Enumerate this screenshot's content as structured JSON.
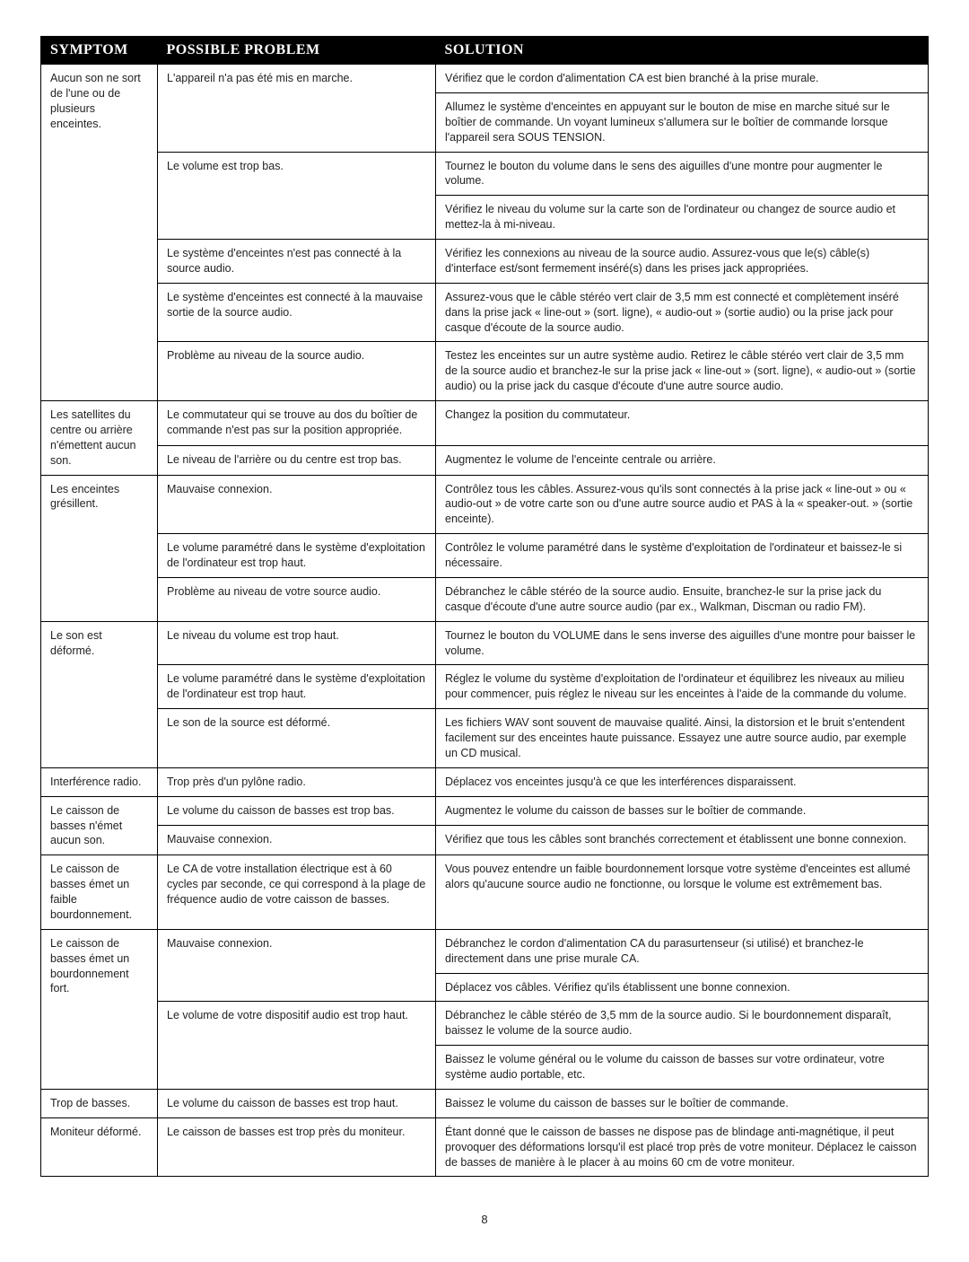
{
  "headers": {
    "symptom": "SYMPTOM",
    "problem": "POSSIBLE PROBLEM",
    "solution": "SOLUTION"
  },
  "page_number": "8",
  "rows": [
    {
      "symptom": "Aucun son ne sort de l'une ou de plusieurs enceintes.",
      "groups": [
        {
          "problem": "L'appareil n'a pas été mis en marche.",
          "solutions": [
            "Vérifiez que le cordon d'alimentation CA est bien branché à la prise murale.",
            "Allumez le système d'enceintes en appuyant sur le bouton de mise en marche situé sur le boîtier de commande. Un voyant lumineux s'allumera sur le boîtier de commande lorsque l'appareil sera SOUS TENSION."
          ]
        },
        {
          "problem": "Le volume est trop bas.",
          "solutions": [
            "Tournez le bouton du volume dans le sens des aiguilles d'une montre pour augmenter le volume.",
            "Vérifiez le niveau du volume sur la carte son de l'ordinateur ou changez de source audio et mettez-la à mi-niveau."
          ]
        },
        {
          "problem": "Le système d'enceintes n'est pas connecté à la source audio.",
          "solutions": [
            "Vérifiez les connexions au niveau de la source audio. Assurez-vous que le(s) câble(s) d'interface est/sont fermement inséré(s) dans les prises jack appropriées."
          ]
        },
        {
          "problem": "Le système d'enceintes est connecté à la mauvaise sortie de la source audio.",
          "solutions": [
            "Assurez-vous que le câble stéréo vert clair de 3,5 mm est connecté et complètement inséré dans la prise jack « line-out » (sort. ligne), « audio-out » (sortie audio) ou la prise jack pour casque d'écoute de la source audio."
          ]
        },
        {
          "problem": "Problème au niveau de la source audio.",
          "solutions": [
            "Testez les enceintes sur un autre système audio. Retirez le câble stéréo vert clair de 3,5 mm de la source audio et branchez-le sur la prise jack « line-out » (sort. ligne), « audio-out » (sortie audio) ou la prise jack du casque d'écoute d'une autre source audio."
          ]
        }
      ]
    },
    {
      "symptom": "Les satellites du centre ou arrière n'émettent aucun son.",
      "groups": [
        {
          "problem": "Le commutateur qui se trouve au dos du boîtier de commande n'est pas sur la position appropriée.",
          "solutions": [
            "Changez la position du commutateur."
          ]
        },
        {
          "problem": "Le niveau de l'arrière ou du centre est trop bas.",
          "solutions": [
            "Augmentez le volume de l'enceinte centrale ou arrière."
          ]
        }
      ]
    },
    {
      "symptom": "Les enceintes grésillent.",
      "groups": [
        {
          "problem": "Mauvaise connexion.",
          "solutions": [
            "Contrôlez tous les câbles. Assurez-vous qu'ils sont connectés à la prise jack « line-out » ou « audio-out » de votre carte son ou d'une autre source audio et PAS à la « speaker-out. » (sortie enceinte)."
          ]
        },
        {
          "problem": "Le volume paramétré dans le système d'exploitation de l'ordinateur est trop haut.",
          "solutions": [
            "Contrôlez le volume paramétré dans le système d'exploitation de l'ordinateur et baissez-le si nécessaire."
          ]
        },
        {
          "problem": "Problème au niveau de votre source audio.",
          "solutions": [
            "Débranchez le câble stéréo de la source audio. Ensuite, branchez-le sur la prise jack du casque d'écoute d'une autre source audio (par ex., Walkman, Discman ou radio FM)."
          ]
        }
      ]
    },
    {
      "symptom": "Le son est déformé.",
      "groups": [
        {
          "problem": "Le niveau du volume est trop haut.",
          "solutions": [
            "Tournez le bouton du VOLUME dans le sens inverse des aiguilles d'une montre pour baisser le volume."
          ]
        },
        {
          "problem": "Le volume paramétré dans le système d'exploitation de l'ordinateur est trop haut.",
          "solutions": [
            "Réglez le volume du système d'exploitation de l'ordinateur et équilibrez les niveaux au milieu pour commencer, puis réglez le niveau sur les enceintes à l'aide de la commande du volume."
          ]
        },
        {
          "problem": "Le son de la source est déformé.",
          "solutions": [
            "Les fichiers WAV sont souvent de mauvaise qualité. Ainsi, la distorsion et le bruit s'entendent facilement sur des enceintes haute puissance. Essayez une autre source audio, par exemple un CD musical."
          ]
        }
      ]
    },
    {
      "symptom": "Interférence radio.",
      "groups": [
        {
          "problem": "Trop près d'un pylône radio.",
          "solutions": [
            "Déplacez vos enceintes jusqu'à ce que les interférences disparaissent."
          ]
        }
      ]
    },
    {
      "symptom": "Le caisson de basses n'émet aucun son.",
      "groups": [
        {
          "problem": "Le volume du caisson de basses est trop bas.",
          "solutions": [
            "Augmentez le volume du caisson de basses sur le boîtier de commande."
          ]
        },
        {
          "problem": "Mauvaise connexion.",
          "solutions": [
            "Vérifiez que tous les câbles sont branchés correctement et établissent une bonne connexion."
          ]
        }
      ]
    },
    {
      "symptom": "Le caisson de basses émet un faible bourdonnement.",
      "groups": [
        {
          "problem": "Le CA de votre installation électrique est à 60 cycles par seconde, ce qui correspond à la plage de fréquence audio de votre caisson de basses.",
          "solutions": [
            "Vous pouvez entendre un faible bourdonnement lorsque votre système d'enceintes est allumé alors qu'aucune source audio ne fonctionne, ou lorsque le volume est extrêmement bas."
          ]
        }
      ]
    },
    {
      "symptom": "Le caisson de basses émet un bourdonnement fort.",
      "groups": [
        {
          "problem": "Mauvaise connexion.",
          "solutions": [
            "Débranchez le cordon d'alimentation CA du parasurtenseur (si utilisé) et branchez-le directement dans une prise murale CA.",
            "Déplacez vos câbles. Vérifiez qu'ils établissent une bonne connexion."
          ]
        },
        {
          "problem": "Le volume de votre dispositif audio est trop haut.",
          "solutions": [
            "Débranchez le câble stéréo de 3,5 mm de la source audio. Si le bourdonnement disparaît, baissez le volume de la source audio.",
            "Baissez le volume général ou le volume du caisson de basses sur votre ordinateur, votre système audio portable, etc."
          ]
        }
      ]
    },
    {
      "symptom": "Trop de basses.",
      "groups": [
        {
          "problem": "Le volume du caisson de basses est trop haut.",
          "solutions": [
            "Baissez le volume du caisson de basses sur le boîtier de commande."
          ]
        }
      ]
    },
    {
      "symptom": "Moniteur déformé.",
      "groups": [
        {
          "problem": "Le caisson de basses est trop près du moniteur.",
          "solutions": [
            "Étant donné que le caisson de basses ne dispose pas de blindage anti-magnétique, il peut provoquer des déformations lorsqu'il est placé trop près de votre moniteur. Déplacez le caisson de basses de manière à le placer à au moins 60 cm de votre moniteur."
          ]
        }
      ]
    }
  ]
}
